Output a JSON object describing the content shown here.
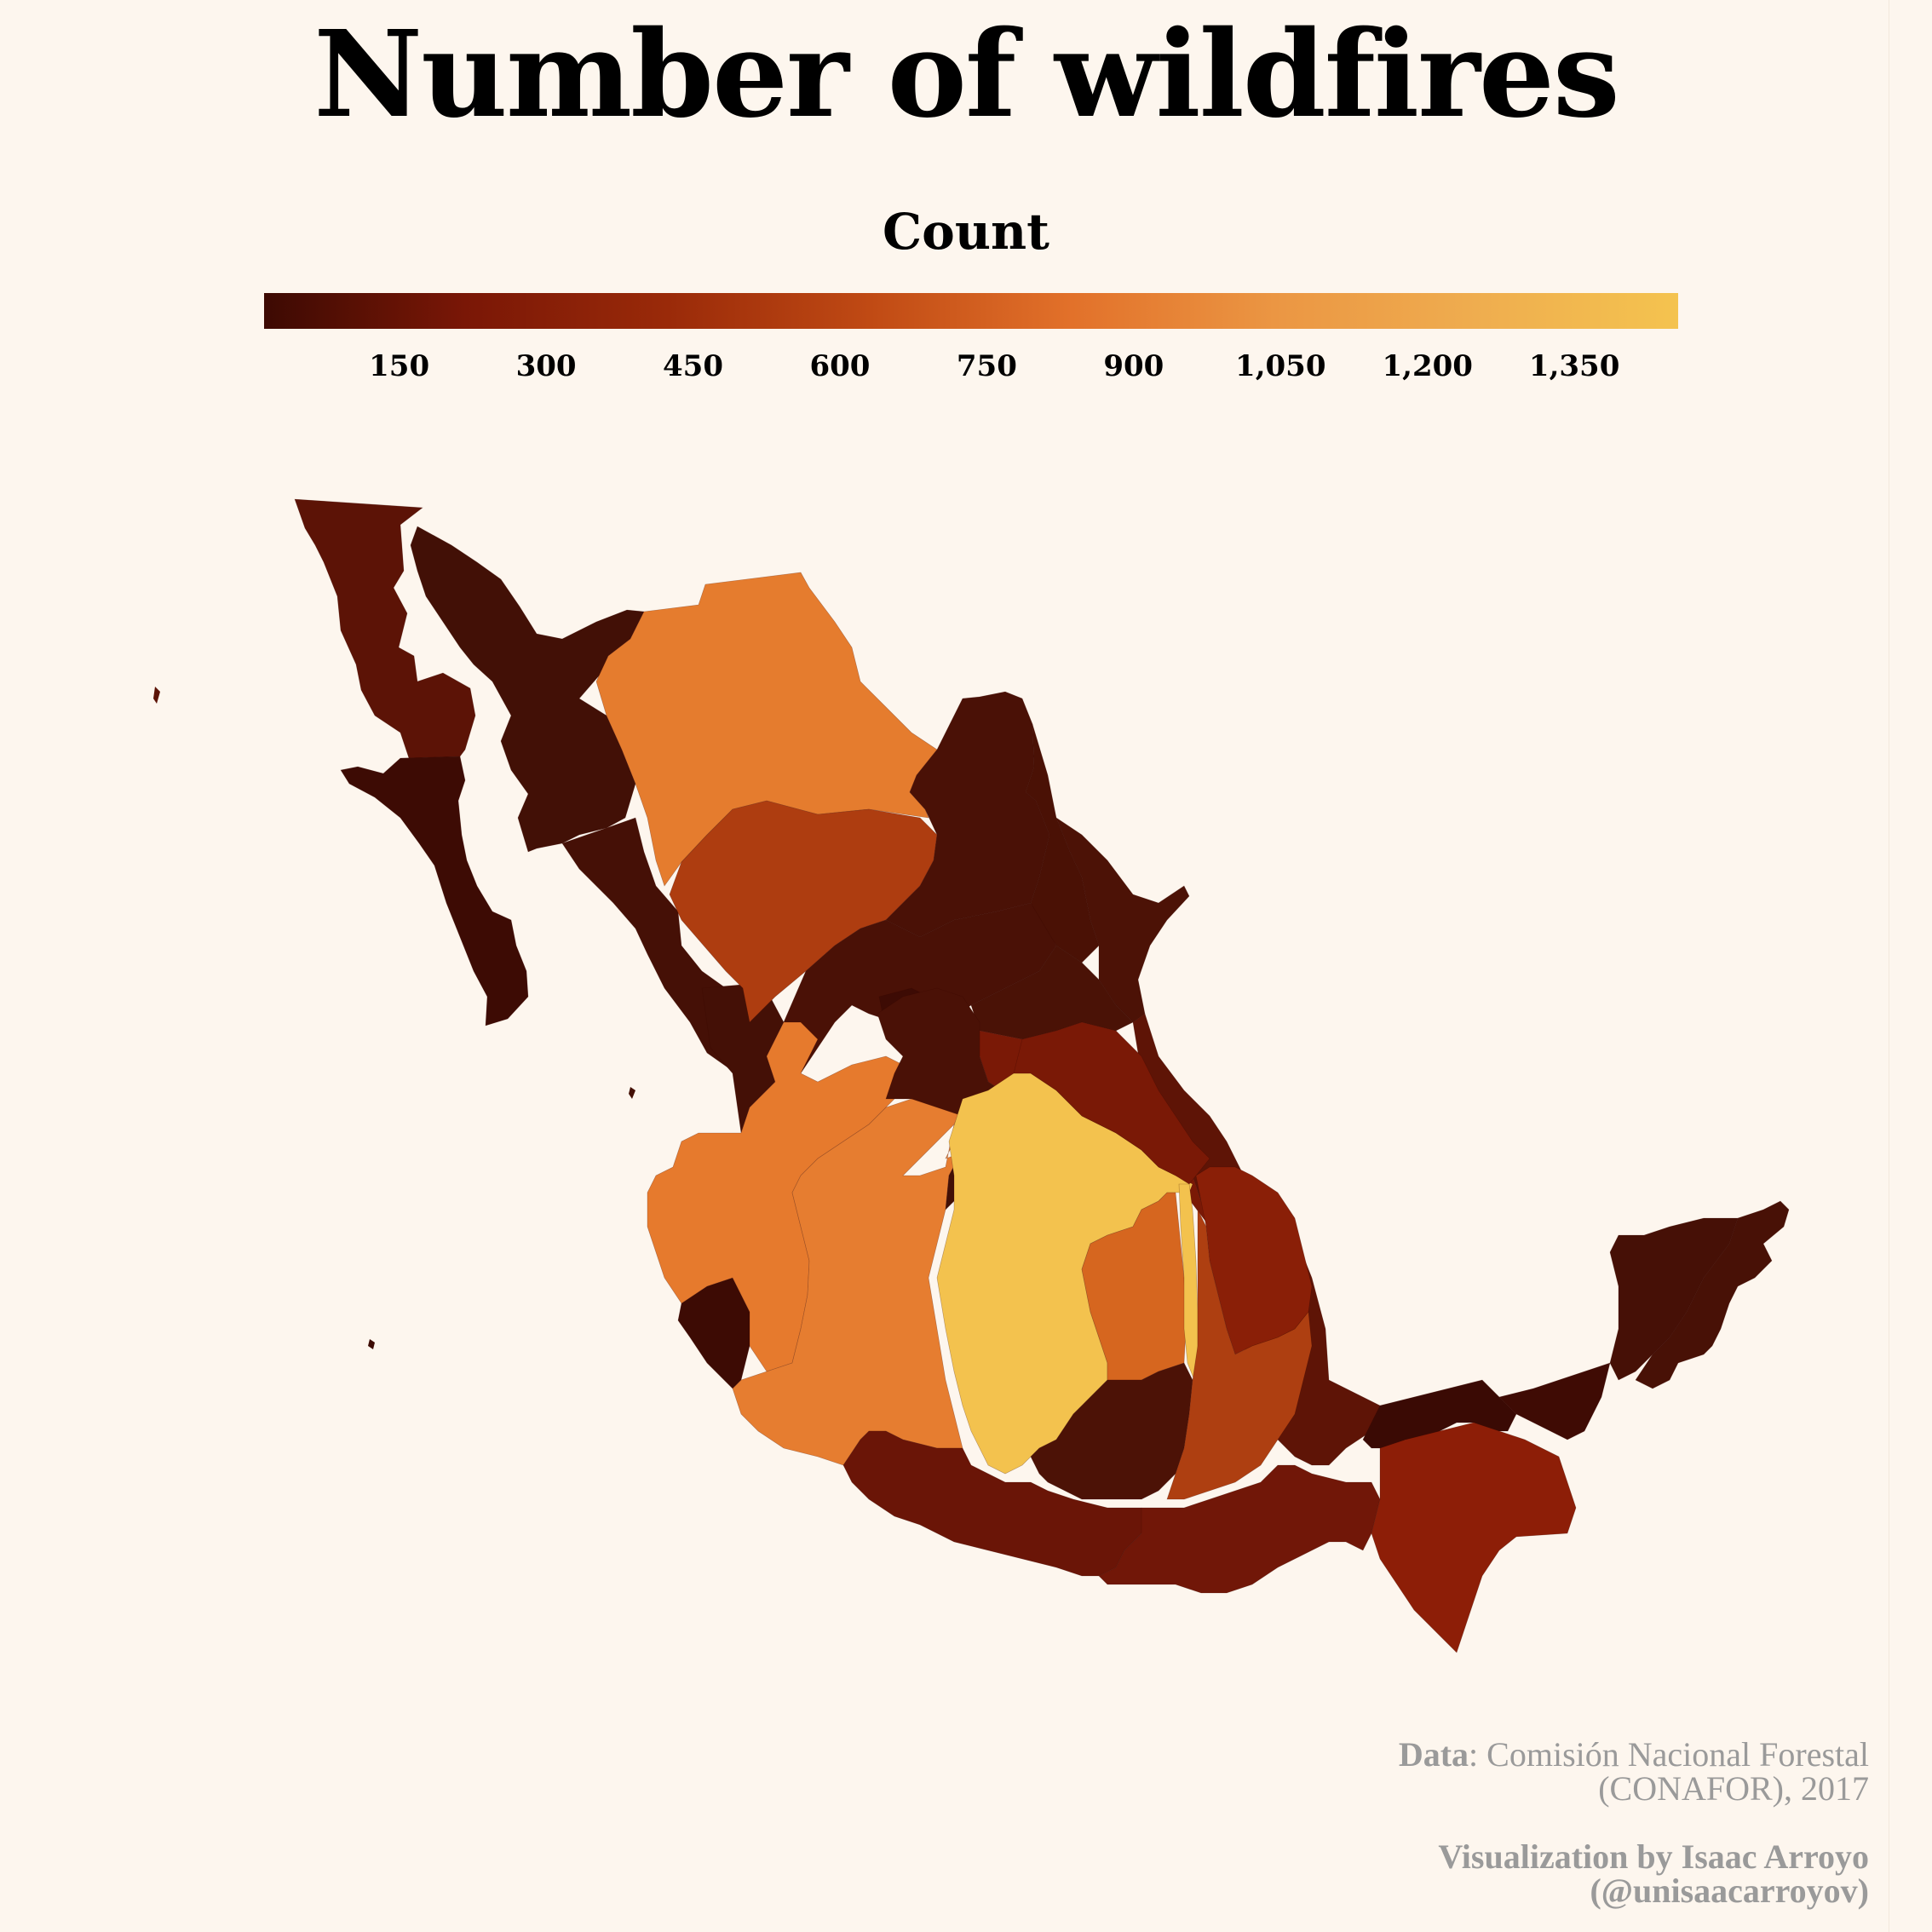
{
  "title": "Number of wildfires",
  "legend": {
    "title": "Count",
    "ticks": [
      "150",
      "300",
      "450",
      "600",
      "750",
      "900",
      "1,050",
      "1,200",
      "1,350"
    ],
    "tick_values": [
      150,
      300,
      450,
      600,
      750,
      900,
      1050,
      1200,
      1350
    ],
    "domain": [
      12,
      1456
    ],
    "colormap": [
      "#3d0a03",
      "#7a1706",
      "#9a2a09",
      "#c04a14",
      "#e2712a",
      "#eb9643",
      "#efad4f",
      "#f4c34f"
    ]
  },
  "map_regions": [
    {
      "id": "baja-california",
      "value": 150,
      "color": "#5c1306"
    },
    {
      "id": "baja-california-sur",
      "value": 40,
      "color": "#3d0b04"
    },
    {
      "id": "sonora",
      "value": 60,
      "color": "#421006"
    },
    {
      "id": "chihuahua",
      "value": 800,
      "color": "#e57c2e"
    },
    {
      "id": "coahuila",
      "value": 80,
      "color": "#4a1106"
    },
    {
      "id": "sinaloa",
      "value": 70,
      "color": "#451006"
    },
    {
      "id": "durango",
      "value": 500,
      "color": "#ae3d10"
    },
    {
      "id": "nuevo-leon",
      "value": 60,
      "color": "#4a1105"
    },
    {
      "id": "tamaulipas",
      "value": 80,
      "color": "#4c1206"
    },
    {
      "id": "zacatecas",
      "value": 70,
      "color": "#4a1106"
    },
    {
      "id": "san-luis-potosi",
      "value": 60,
      "color": "#4a1206"
    },
    {
      "id": "nayarit",
      "value": 60,
      "color": "#441006"
    },
    {
      "id": "jalisco",
      "value": 780,
      "color": "#e67a2d"
    },
    {
      "id": "colima",
      "value": 40,
      "color": "#3d0b04"
    },
    {
      "id": "michoacan",
      "value": 800,
      "color": "#e67d30"
    },
    {
      "id": "mexico",
      "value": 1456,
      "color": "#f3c24e"
    },
    {
      "id": "cdmx",
      "value": 650,
      "color": "#d6661f"
    },
    {
      "id": "puebla",
      "value": 350,
      "color": "#8a1f07"
    },
    {
      "id": "hidalgo",
      "value": 250,
      "color": "#7a1906"
    },
    {
      "id": "veracruz",
      "value": 150,
      "color": "#5e1406"
    },
    {
      "id": "morelos",
      "value": 60,
      "color": "#4c1206"
    },
    {
      "id": "tlaxcala",
      "value": 500,
      "color": "#ae3f11"
    },
    {
      "id": "guerrero",
      "value": 200,
      "color": "#6a1507"
    },
    {
      "id": "oaxaca",
      "value": 200,
      "color": "#711708"
    },
    {
      "id": "tabasco",
      "value": 20,
      "color": "#3a0a04"
    },
    {
      "id": "chiapas",
      "value": 350,
      "color": "#8d1e07"
    },
    {
      "id": "campeche",
      "value": 40,
      "color": "#3f0b04"
    },
    {
      "id": "yucatan",
      "value": 60,
      "color": "#461006"
    },
    {
      "id": "quintana-roo",
      "value": 70,
      "color": "#481106"
    }
  ],
  "credits": {
    "data_label": "Data",
    "data_line1": ": Comisión Nacional Forestal",
    "data_line2": "(CONAFOR), 2017",
    "viz_line1": "Visualization by Isaac Arroyo",
    "viz_line2": "(@unisaacarroyov)"
  }
}
